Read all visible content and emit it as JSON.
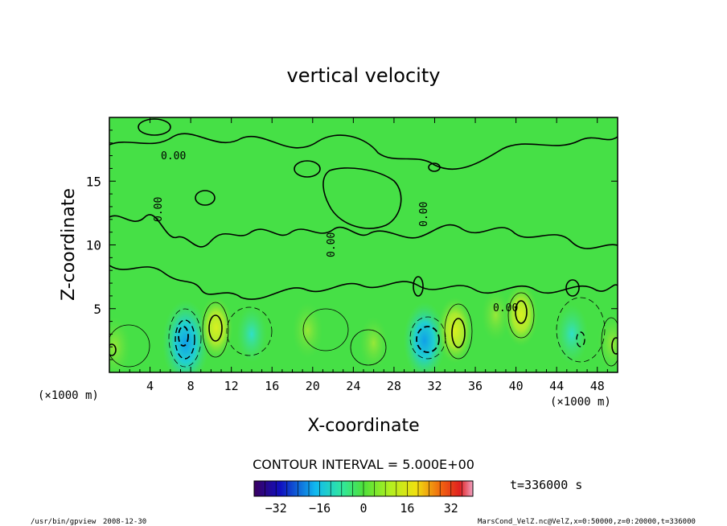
{
  "chart_data": {
    "type": "heatmap",
    "title": "vertical velocity",
    "xlabel": "X-coordinate",
    "ylabel": "Z-coordinate",
    "x_unit": "(×1000 m)",
    "y_unit": "(×1000 m)",
    "xlim": [
      0,
      50
    ],
    "ylim": [
      0,
      20
    ],
    "x_ticks": [
      4,
      8,
      12,
      16,
      20,
      24,
      28,
      32,
      36,
      40,
      44,
      48
    ],
    "x_tick_labels": [
      "4",
      "8",
      "12",
      "16",
      "20",
      "24",
      "28",
      "32",
      "36",
      "40",
      "44",
      "48"
    ],
    "y_ticks": [
      5,
      10,
      15
    ],
    "y_tick_labels": [
      "5",
      "10",
      "15"
    ],
    "contour_interval_text": "CONTOUR INTERVAL = 5.000E+00",
    "contour_label": "0.00",
    "colorbar": {
      "range": [
        -40,
        40
      ],
      "ticks": [
        -32,
        -16,
        0,
        16,
        32
      ],
      "tick_labels": [
        "−32",
        "−16",
        "0",
        "16",
        "32"
      ]
    },
    "features": [
      {
        "x": 7.5,
        "z": 2.3,
        "sign": "negative",
        "peak": -25
      },
      {
        "x": 10.5,
        "z": 3.5,
        "sign": "positive",
        "peak": 12
      },
      {
        "x": 14.0,
        "z": 3.0,
        "sign": "negative",
        "peak": -8
      },
      {
        "x": 19.5,
        "z": 3.3,
        "sign": "positive",
        "peak": 8
      },
      {
        "x": 26.0,
        "z": 2.3,
        "sign": "positive",
        "peak": 6
      },
      {
        "x": 31.0,
        "z": 2.5,
        "sign": "negative",
        "peak": -20
      },
      {
        "x": 34.0,
        "z": 3.3,
        "sign": "positive",
        "peak": 14
      },
      {
        "x": 38.0,
        "z": 4.5,
        "sign": "positive",
        "peak": 6
      },
      {
        "x": 40.5,
        "z": 4.5,
        "sign": "positive",
        "peak": 12
      },
      {
        "x": 45.5,
        "z": 3.0,
        "sign": "negative",
        "peak": -10
      },
      {
        "x": 0.5,
        "z": 2.0,
        "sign": "positive",
        "peak": 10
      },
      {
        "x": 49.5,
        "z": 2.3,
        "sign": "positive",
        "peak": 8
      }
    ]
  },
  "footer": {
    "time_label": "t=336000 s",
    "program": "/usr/bin/gpview",
    "date": "2008-12-30",
    "source": "MarsCond_VelZ.nc@VelZ,x=0:50000,z=0:20000,t=336000"
  }
}
